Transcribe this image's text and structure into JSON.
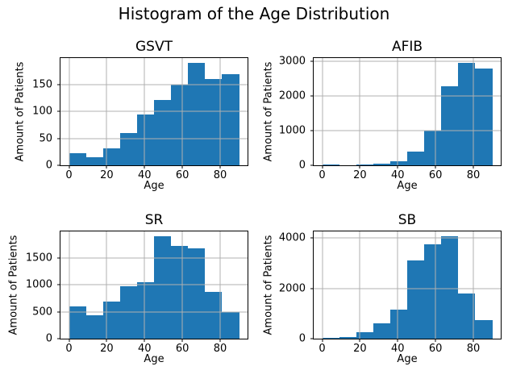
{
  "figure": {
    "title": "Histogram of the Age Distribution",
    "bar_color": "#1f77b4",
    "grid_color": "#b0b0b0",
    "axis_color": "#000000",
    "background": "#ffffff"
  },
  "chart_data": [
    {
      "type": "bar",
      "title": "GSVT",
      "xlabel": "Age",
      "ylabel": "Amount of Patients",
      "bin_start": 0,
      "bin_width": 9,
      "bin_edges": [
        0,
        9,
        18,
        27,
        36,
        45,
        54,
        63,
        72,
        81,
        90
      ],
      "values": [
        22,
        15,
        32,
        60,
        95,
        122,
        150,
        190,
        160,
        170
      ],
      "xticks": [
        0,
        20,
        40,
        60,
        80
      ],
      "yticks": [
        0,
        50,
        100,
        150
      ],
      "xlim": [
        -4.5,
        94.5
      ],
      "ylim": [
        0,
        199.5
      ],
      "grid": true,
      "legend": "none"
    },
    {
      "type": "bar",
      "title": "AFIB",
      "xlabel": "Age",
      "ylabel": "Amount of Patients",
      "bin_start": 0,
      "bin_width": 9,
      "bin_edges": [
        0,
        9,
        18,
        27,
        36,
        45,
        54,
        63,
        72,
        81,
        90
      ],
      "values": [
        30,
        10,
        25,
        50,
        110,
        400,
        1010,
        2280,
        2950,
        2800
      ],
      "xticks": [
        0,
        20,
        40,
        60,
        80
      ],
      "yticks": [
        0,
        1000,
        2000,
        3000
      ],
      "xlim": [
        -4.5,
        94.5
      ],
      "ylim": [
        0,
        3097.5
      ],
      "grid": true,
      "legend": "none"
    },
    {
      "type": "bar",
      "title": "SR",
      "xlabel": "Age",
      "ylabel": "Amount of Patients",
      "bin_start": 0,
      "bin_width": 9,
      "bin_edges": [
        0,
        9,
        18,
        27,
        36,
        45,
        54,
        63,
        72,
        81,
        90
      ],
      "values": [
        600,
        440,
        690,
        970,
        1050,
        1900,
        1720,
        1680,
        870,
        500
      ],
      "xticks": [
        0,
        20,
        40,
        60,
        80
      ],
      "yticks": [
        0,
        500,
        1000,
        1500
      ],
      "xlim": [
        -4.5,
        94.5
      ],
      "ylim": [
        0,
        1995
      ],
      "grid": true,
      "legend": "none"
    },
    {
      "type": "bar",
      "title": "SB",
      "xlabel": "Age",
      "ylabel": "Amount of Patients",
      "bin_start": 0,
      "bin_width": 9,
      "bin_edges": [
        0,
        9,
        18,
        27,
        36,
        45,
        54,
        63,
        72,
        81,
        90
      ],
      "values": [
        30,
        70,
        260,
        600,
        1150,
        3100,
        3750,
        4060,
        1800,
        750
      ],
      "xticks": [
        0,
        20,
        40,
        60,
        80
      ],
      "yticks": [
        0,
        2000,
        4000
      ],
      "xlim": [
        -4.5,
        94.5
      ],
      "ylim": [
        0,
        4263
      ],
      "grid": true,
      "legend": "none"
    }
  ]
}
